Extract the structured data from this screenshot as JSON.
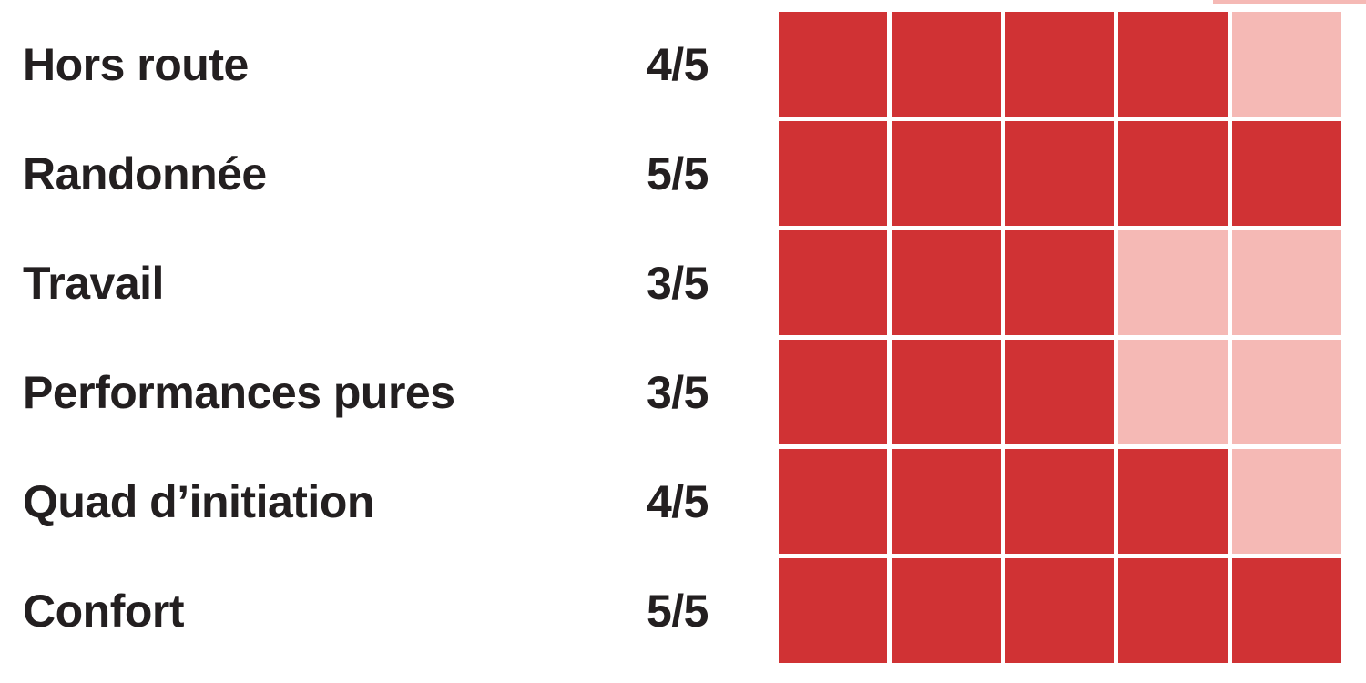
{
  "chart_data": {
    "type": "bar",
    "style": "discrete-square-rating-cells",
    "title": "",
    "categories": [
      "Hors route",
      "Randonnée",
      "Travail",
      "Performances pures",
      "Quad d’initiation",
      "Confort"
    ],
    "values": [
      4,
      5,
      3,
      3,
      4,
      5
    ],
    "value_labels": [
      "4/5",
      "5/5",
      "3/5",
      "3/5",
      "4/5",
      "5/5"
    ],
    "max_value": 5,
    "grid": false,
    "legend_position": "none",
    "colors": {
      "filled": "#d03234",
      "empty": "#f5b9b5",
      "cell_gap": "#ffffff",
      "label_text": "#231f20",
      "background": "#ffffff"
    }
  }
}
